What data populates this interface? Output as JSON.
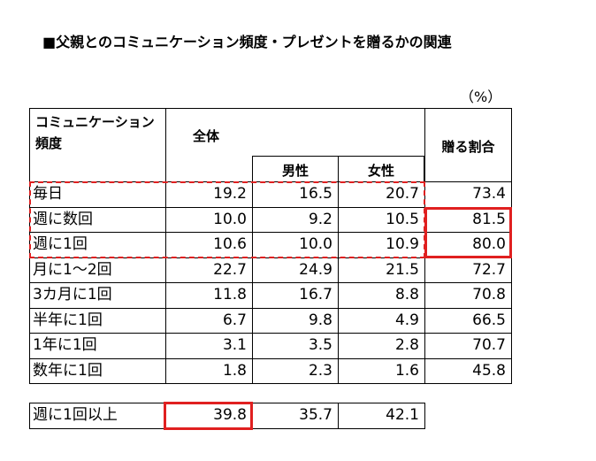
{
  "header": {
    "title": "■父親とのコミュニケーション頻度・プレゼントを贈るかの関連",
    "unit": "（%）"
  },
  "table": {
    "columns": {
      "label": [
        "コミュニケーション",
        "頻度"
      ],
      "total": "全体",
      "male": "男性",
      "female": "女性",
      "ratio": "贈る割合"
    },
    "rows": [
      [
        "毎日",
        "19.2",
        "16.5",
        "20.7",
        "73.4"
      ],
      [
        "週に数回",
        "10.0",
        "9.2",
        "10.5",
        "81.5"
      ],
      [
        "週に1回",
        "10.6",
        "10.0",
        "10.9",
        "80.0"
      ],
      [
        "月に1～2回",
        "22.7",
        "24.9",
        "21.5",
        "72.7"
      ],
      [
        "3カ月に1回",
        "11.8",
        "16.7",
        "8.8",
        "70.8"
      ],
      [
        "半年に1回",
        "6.7",
        "9.8",
        "4.9",
        "66.5"
      ],
      [
        "1年に1回",
        "3.1",
        "3.5",
        "2.8",
        "70.7"
      ],
      [
        "数年に1回",
        "1.8",
        "2.3",
        "1.6",
        "45.8"
      ]
    ],
    "summary": [
      "週に1回以上",
      "39.8",
      "35.7",
      "42.1"
    ]
  }
}
